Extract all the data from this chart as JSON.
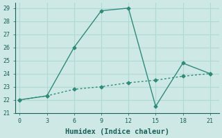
{
  "xlabel": "Humidex (Indice chaleur)",
  "line1_x": [
    0,
    3,
    6,
    9,
    12,
    15,
    18,
    21
  ],
  "line1_y": [
    22,
    22.3,
    26,
    28.8,
    29,
    21.5,
    24.8,
    24
  ],
  "line2_x": [
    0,
    3,
    6,
    9,
    12,
    15,
    18,
    21
  ],
  "line2_y": [
    22,
    22.3,
    22.8,
    23.0,
    23.3,
    23.5,
    23.8,
    24
  ],
  "line_color": "#2e8b7a",
  "bg_color": "#cde8e5",
  "grid_color": "#b0d8d4",
  "xlim": [
    -0.5,
    22
  ],
  "ylim": [
    21,
    29.4
  ],
  "xticks": [
    0,
    3,
    6,
    9,
    12,
    15,
    18,
    21
  ],
  "yticks": [
    21,
    22,
    23,
    24,
    25,
    26,
    27,
    28,
    29
  ],
  "marker": "D",
  "markersize": 2.5,
  "linewidth": 1.0,
  "tick_color": "#1a5f5a",
  "xlabel_fontsize": 7.5
}
